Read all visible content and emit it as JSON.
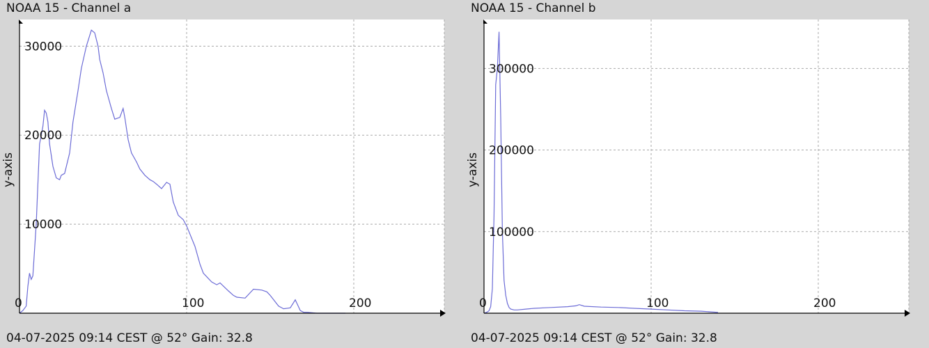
{
  "charts": [
    {
      "title": "NOAA 15 - Channel a",
      "ylabel": "y-axis",
      "footer": "04-07-2025 09:14 CEST @ 52° Gain: 32.8"
    },
    {
      "title": "NOAA 15 - Channel b",
      "ylabel": "y-axis",
      "footer": "04-07-2025 09:14 CEST @ 52° Gain: 32.8"
    }
  ],
  "colors": {
    "background": "#d6d6d6",
    "plot_area": "#ffffff",
    "line": "#6b6bd6",
    "grid": "#a8a8a8",
    "axis": "#000000"
  },
  "chart_data": [
    {
      "type": "line",
      "title": "NOAA 15 - Channel a",
      "xlabel": "",
      "ylabel": "y-axis",
      "xlim": [
        0,
        255
      ],
      "ylim": [
        0,
        33000
      ],
      "xticks": [
        0,
        100,
        200
      ],
      "yticks": [
        10000,
        20000,
        30000
      ],
      "grid": true,
      "series": [
        {
          "x": [
            0,
            2,
            4,
            5,
            6,
            7,
            8,
            10,
            12,
            13,
            14,
            15,
            16,
            17,
            18,
            20,
            22,
            24,
            25,
            27,
            30,
            32,
            35,
            37,
            40,
            43,
            45,
            47,
            48,
            50,
            52,
            55,
            57,
            60,
            62,
            63,
            65,
            67,
            70,
            72,
            75,
            78,
            80,
            82,
            85,
            88,
            90,
            92,
            95,
            98,
            100,
            105,
            108,
            110,
            115,
            118,
            120,
            125,
            128,
            130,
            135,
            140,
            145,
            148,
            150,
            155,
            158,
            162,
            165,
            168,
            170,
            172,
            175,
            178,
            180,
            185,
            190,
            195
          ],
          "y": [
            0,
            300,
            800,
            3000,
            4500,
            3800,
            4200,
            10000,
            19000,
            20000,
            21000,
            22800,
            22500,
            21500,
            19000,
            16500,
            15200,
            15000,
            15500,
            15700,
            18000,
            21500,
            25000,
            27500,
            30000,
            31800,
            31500,
            30000,
            28500,
            27000,
            25000,
            23000,
            21800,
            22000,
            23000,
            22000,
            19500,
            18000,
            17000,
            16200,
            15500,
            15000,
            14800,
            14500,
            14000,
            14700,
            14500,
            12500,
            11000,
            10500,
            9800,
            7500,
            5500,
            4500,
            3500,
            3200,
            3400,
            2500,
            2000,
            1800,
            1700,
            2700,
            2600,
            2400,
            2000,
            800,
            500,
            600,
            1500,
            300,
            100,
            100,
            50,
            0,
            0,
            0,
            0,
            0
          ]
        }
      ]
    },
    {
      "type": "line",
      "title": "NOAA 15 - Channel b",
      "xlabel": "",
      "ylabel": "y-axis",
      "xlim": [
        0,
        255
      ],
      "ylim": [
        0,
        360000
      ],
      "xticks": [
        0,
        100,
        200
      ],
      "yticks": [
        100000,
        200000,
        300000
      ],
      "grid": true,
      "series": [
        {
          "x": [
            0,
            2,
            3,
            4,
            5,
            6,
            7,
            8,
            9,
            10,
            11,
            12,
            13,
            14,
            15,
            16,
            18,
            20,
            25,
            30,
            40,
            50,
            55,
            57,
            60,
            70,
            80,
            90,
            100,
            110,
            120,
            130,
            140
          ],
          "y": [
            0,
            1500,
            3000,
            8000,
            30000,
            120000,
            280000,
            300000,
            345000,
            240000,
            100000,
            40000,
            22000,
            12000,
            7000,
            5000,
            4000,
            4000,
            5000,
            6000,
            7000,
            8000,
            9000,
            10500,
            8500,
            7500,
            7000,
            6000,
            5000,
            4000,
            3000,
            2500,
            1000
          ]
        }
      ]
    }
  ]
}
